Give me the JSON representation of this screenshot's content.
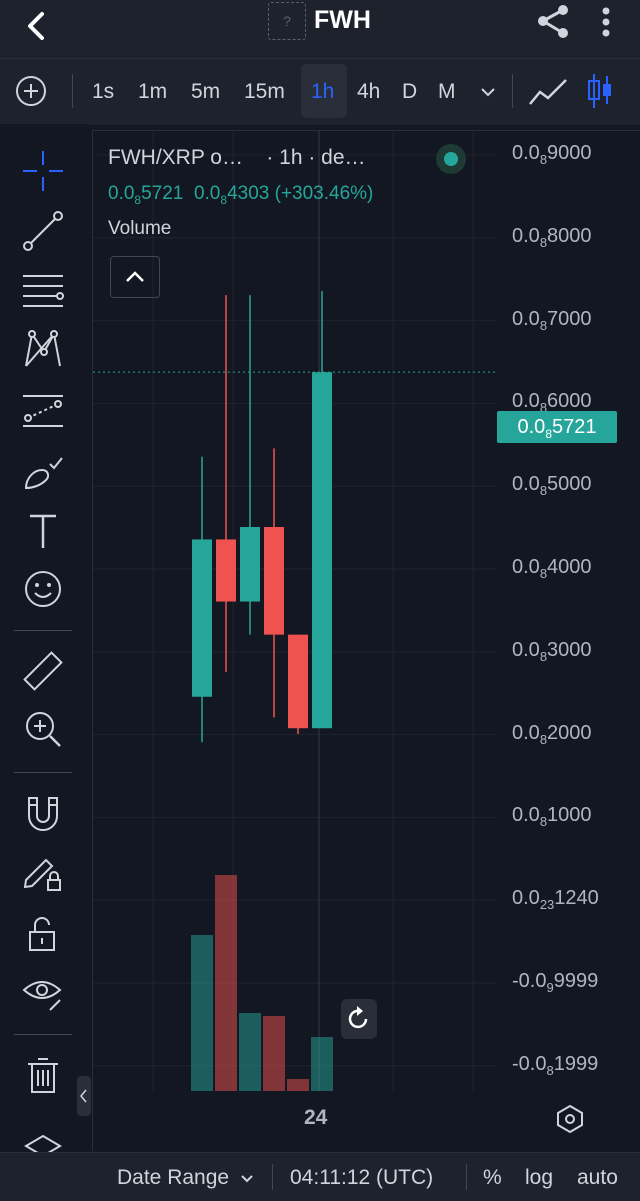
{
  "header": {
    "back_icon": "chevron-left-icon",
    "logo_placeholder": "?",
    "title": "FWH",
    "share_icon": "share-icon",
    "more_icon": "vertical-dots-icon"
  },
  "toolbar": {
    "add_icon": "plus-circle-icon",
    "timeframes": [
      "1s",
      "1m",
      "5m",
      "15m",
      "1h",
      "4h",
      "D",
      "M"
    ],
    "active_timeframe": "1h",
    "dropdown_icon": "chevron-down-icon",
    "chart_type_icons": [
      "line-chart-icon",
      "candlestick-icon"
    ]
  },
  "left_tools": [
    "crosshair-icon",
    "trend-line-icon",
    "fib-lines-icon",
    "pattern-icon",
    "forecast-icon",
    "brush-icon",
    "text-icon",
    "emoji-icon",
    "ruler-icon",
    "zoom-in-icon",
    "magnet-icon",
    "pencil-lock-icon",
    "unlock-icon",
    "eye-icon",
    "trash-icon",
    "layers-icon"
  ],
  "legend": {
    "symbol": "FWH/XRP o…",
    "interval": "· 1h · de…",
    "ohlc_1_pre": "0.0",
    "ohlc_1_sub": "8",
    "ohlc_1_post": "5721",
    "ohlc_2_pre": "0.0",
    "ohlc_2_sub": "8",
    "ohlc_2_post": "4303",
    "change": "(+303.46%)",
    "volume_label": "Volume"
  },
  "price_axis": [
    {
      "pre": "0.0",
      "sub": "8",
      "post": "9000"
    },
    {
      "pre": "0.0",
      "sub": "8",
      "post": "8000"
    },
    {
      "pre": "0.0",
      "sub": "8",
      "post": "7000"
    },
    {
      "pre": "0.0",
      "sub": "8",
      "post": "6000"
    },
    {
      "pre": "0.0",
      "sub": "8",
      "post": "5000"
    },
    {
      "pre": "0.0",
      "sub": "8",
      "post": "4000"
    },
    {
      "pre": "0.0",
      "sub": "8",
      "post": "3000"
    },
    {
      "pre": "0.0",
      "sub": "8",
      "post": "2000"
    },
    {
      "pre": "0.0",
      "sub": "8",
      "post": "1000"
    },
    {
      "pre": "0.0",
      "sub": "23",
      "post": "1240"
    },
    {
      "pre": "-0.0",
      "sub": "9",
      "post": "9999"
    },
    {
      "pre": "-0.0",
      "sub": "8",
      "post": "1999"
    }
  ],
  "current_price": {
    "pre": "0.0",
    "sub": "8",
    "post": "5721"
  },
  "x_axis_label": "24",
  "colors": {
    "up": "#26a69a",
    "down": "#ef5350",
    "background": "#131722"
  },
  "chart_data": {
    "type": "candlestick",
    "units_note_scale": "1e-9",
    "candles": [
      {
        "o": 1.8,
        "h": 4.7,
        "l": 1.25,
        "c": 3.7,
        "vol": 0.52
      },
      {
        "o": 3.7,
        "h": 6.65,
        "l": 2.1,
        "c": 2.95,
        "vol": 0.72
      },
      {
        "o": 2.95,
        "h": 6.65,
        "l": 2.55,
        "c": 3.85,
        "vol": 0.26
      },
      {
        "o": 3.85,
        "h": 4.8,
        "l": 1.55,
        "c": 2.55,
        "vol": 0.25
      },
      {
        "o": 2.55,
        "h": 2.55,
        "l": 1.35,
        "c": 1.42,
        "vol": 0.04
      },
      {
        "o": 1.42,
        "h": 6.7,
        "l": 1.42,
        "c": 5.72,
        "vol": 0.18
      }
    ],
    "ylim": [
      -2.0,
      9.0
    ],
    "last_price": 5.721
  },
  "footer": {
    "date_range": "Date Range",
    "time": "04:11:12 (UTC)",
    "percent": "%",
    "log": "log",
    "auto": "auto"
  }
}
